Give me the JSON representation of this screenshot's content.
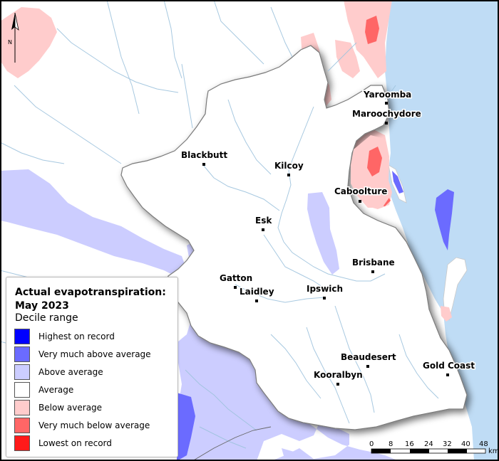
{
  "legend": {
    "title": "Actual evapotranspiration: May 2023",
    "subtitle": "Decile range",
    "items": [
      {
        "label": "Highest on record",
        "color": "#0000ff"
      },
      {
        "label": "Very much above average",
        "color": "#6b6bff"
      },
      {
        "label": "Above average",
        "color": "#cccdff"
      },
      {
        "label": "Average",
        "color": "#ffffff"
      },
      {
        "label": "Below average",
        "color": "#ffcccc"
      },
      {
        "label": "Very much below average",
        "color": "#ff6666"
      },
      {
        "label": "Lowest on record",
        "color": "#ff1a1a"
      }
    ]
  },
  "north_arrow": {
    "label": "N"
  },
  "towns": [
    {
      "name": "Yaroomba"
    },
    {
      "name": "Maroochydore"
    },
    {
      "name": "Blackbutt"
    },
    {
      "name": "Kilcoy"
    },
    {
      "name": "Caboolture"
    },
    {
      "name": "Esk"
    },
    {
      "name": "Brisbane"
    },
    {
      "name": "Gatton"
    },
    {
      "name": "Laidley"
    },
    {
      "name": "Ipswich"
    },
    {
      "name": "Beaudesert"
    },
    {
      "name": "Kooralbyn"
    },
    {
      "name": "Gold Coast"
    }
  ],
  "scale_bar": {
    "ticks": [
      "0",
      "8",
      "16",
      "24",
      "32",
      "40",
      "48"
    ],
    "unit": "km"
  }
}
